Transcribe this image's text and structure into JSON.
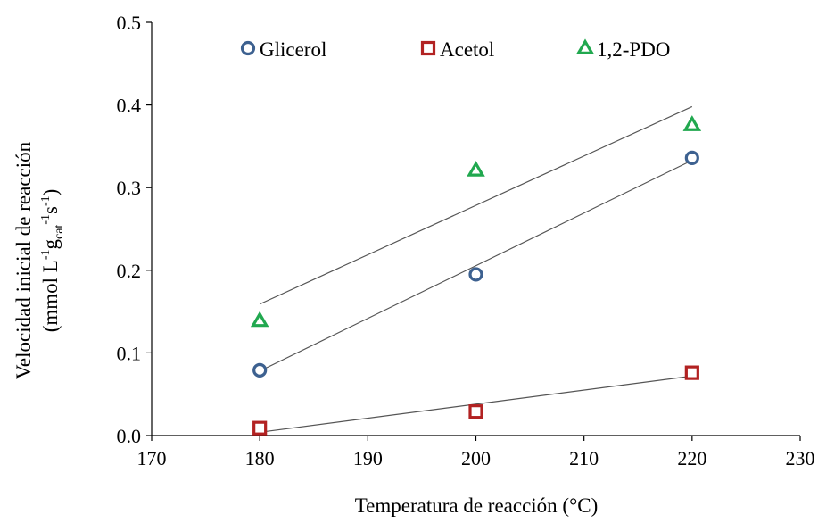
{
  "chart_data": {
    "type": "scatter",
    "title": "",
    "xlabel": "Temperatura  de reacción (°C)",
    "ylabel_line1": "Velocidad  inicial  de reacción",
    "ylabel_line2": {
      "open": "(mmol L",
      "sup1": "-1",
      "g": "g",
      "sub": "cat",
      "sup2": "-1",
      "s": "s",
      "sup3": "-1",
      "close": ")"
    },
    "xlim": [
      170,
      230
    ],
    "ylim": [
      0.0,
      0.5
    ],
    "xticks": [
      "170",
      "180",
      "190",
      "200",
      "210",
      "220",
      "230"
    ],
    "yticks": [
      "0.0",
      "0.1",
      "0.2",
      "0.3",
      "0.4",
      "0.5"
    ],
    "grid": false,
    "legend_position": "top",
    "series": [
      {
        "name": "Glicerol",
        "marker": "circle",
        "color": "#3d6190",
        "points": [
          [
            180,
            0.079
          ],
          [
            200,
            0.195
          ],
          [
            220,
            0.336
          ]
        ],
        "trendline": [
          [
            180,
            0.078
          ],
          [
            220,
            0.333
          ]
        ]
      },
      {
        "name": "Acetol",
        "marker": "square",
        "color": "#b22222",
        "points": [
          [
            180,
            0.009
          ],
          [
            200,
            0.029
          ],
          [
            220,
            0.076
          ]
        ],
        "trendline": [
          [
            180,
            0.004
          ],
          [
            220,
            0.072
          ]
        ]
      },
      {
        "name": "1,2-PDO",
        "marker": "triangle",
        "color": "#21a84f",
        "points": [
          [
            180,
            0.139
          ],
          [
            200,
            0.321
          ],
          [
            220,
            0.376
          ]
        ],
        "trendline": [
          [
            180,
            0.159
          ],
          [
            220,
            0.398
          ]
        ]
      }
    ]
  }
}
